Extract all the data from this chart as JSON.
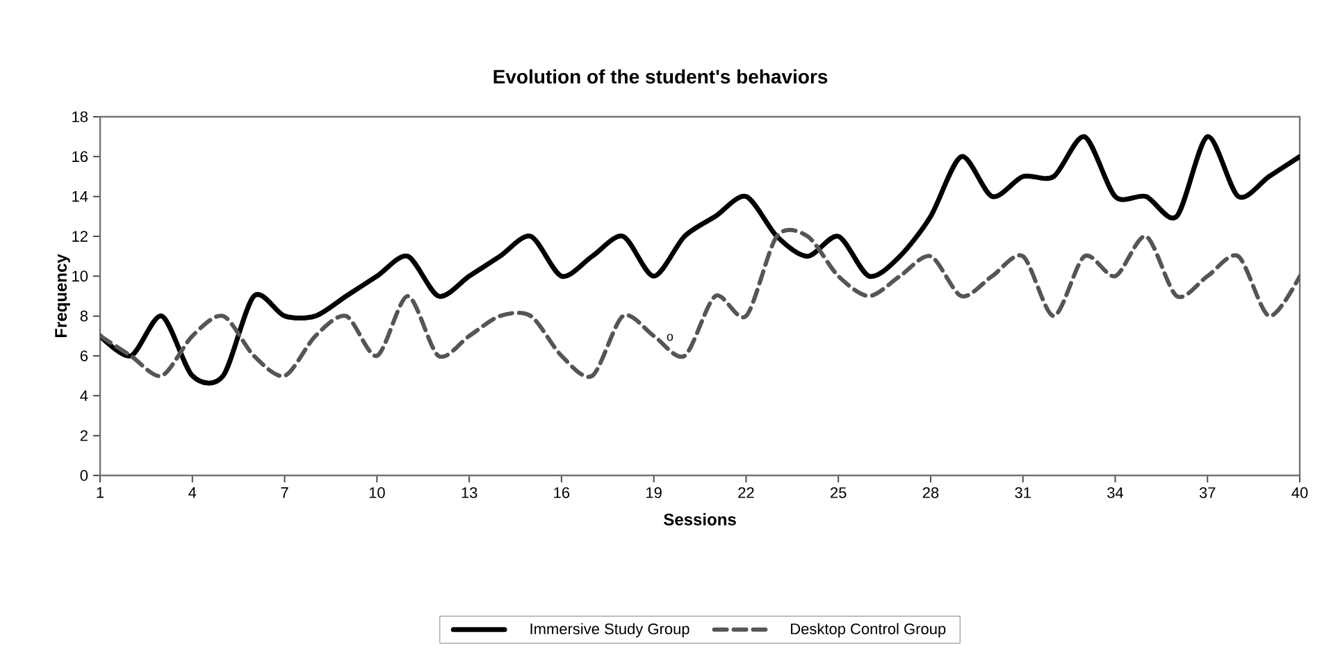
{
  "chart_data": {
    "type": "line",
    "title": "Evolution of the student's behaviors",
    "xlabel": "Sessions",
    "ylabel": "Frequency",
    "x": [
      1,
      2,
      3,
      4,
      5,
      6,
      7,
      8,
      9,
      10,
      11,
      12,
      13,
      14,
      15,
      16,
      17,
      18,
      19,
      20,
      21,
      22,
      23,
      24,
      25,
      26,
      27,
      28,
      29,
      30,
      31,
      32,
      33,
      34,
      35,
      36,
      37,
      38,
      39,
      40
    ],
    "series": [
      {
        "name": "Immersive Study Group",
        "color": "#000000",
        "line_style": "solid",
        "values": [
          7,
          6,
          8,
          5,
          5,
          9,
          8,
          8,
          9,
          10,
          11,
          9,
          10,
          11,
          12,
          10,
          11,
          12,
          10,
          12,
          13,
          14,
          12,
          11,
          12,
          10,
          11,
          13,
          16,
          14,
          15,
          15,
          17,
          14,
          14,
          13,
          17,
          14,
          15,
          16
        ]
      },
      {
        "name": "Desktop Control Group",
        "color": "#555555",
        "line_style": "dashed",
        "values": [
          7,
          6,
          5,
          7,
          8,
          6,
          5,
          7,
          8,
          6,
          9,
          6,
          7,
          8,
          8,
          6,
          5,
          8,
          7,
          6,
          9,
          8,
          12,
          12,
          10,
          9,
          10,
          11,
          9,
          10,
          11,
          8,
          11,
          10,
          12,
          9,
          10,
          11,
          8,
          10
        ]
      }
    ],
    "xlim": [
      1,
      40
    ],
    "xticks": [
      1,
      4,
      7,
      10,
      13,
      16,
      19,
      22,
      25,
      28,
      31,
      34,
      37,
      40
    ],
    "ylim": [
      0,
      18
    ],
    "yticks": [
      0,
      2,
      4,
      6,
      8,
      10,
      12,
      14,
      16,
      18
    ],
    "grid": false,
    "legend": "bottom",
    "marker": "none",
    "annotations": [
      "o"
    ]
  }
}
